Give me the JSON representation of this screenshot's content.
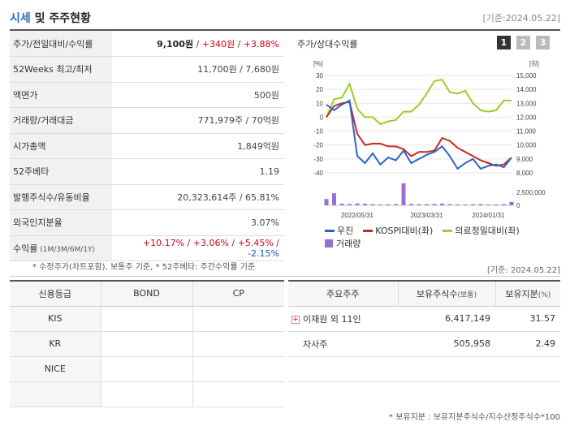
{
  "header": {
    "title_part1": "시세",
    "title_part2": " 및 주주현황",
    "date": "[기준:2024.05.22]"
  },
  "quote": {
    "rows": [
      {
        "label": "주가/전일대비/수익률",
        "price": "9,100원",
        "change": "+340원",
        "rate": "+3.88%"
      },
      {
        "label": "52Weeks 최고/최저",
        "value": "11,700원 / 7,680원"
      },
      {
        "label": "액면가",
        "value": "500원"
      },
      {
        "label": "거래량/거래대금",
        "value": "771,979주 / 70억원"
      },
      {
        "label": "시가총액",
        "value": "1,849억원"
      },
      {
        "label": "52주베타",
        "value": "1.19"
      },
      {
        "label": "발행주식수/유동비율",
        "value": "20,323,614주 / 65.81%"
      },
      {
        "label": "외국인지분율",
        "value": "3.07%"
      }
    ],
    "return_row": {
      "label": "수익률",
      "label_small": " (1M/3M/6M/1Y)",
      "r1": "+10.17%",
      "r2": "+3.06%",
      "r3": "+5.45%",
      "r4": "-2.15%"
    }
  },
  "chart": {
    "title": "주가/상대수익률",
    "tabs": [
      "1",
      "2",
      "3"
    ],
    "left_unit": "[%]",
    "right_unit": "[원]",
    "left_ticks": [
      "30",
      "20",
      "10",
      "0",
      "-10",
      "-20",
      "-30",
      "-40"
    ],
    "right_ticks": [
      "15,000",
      "14,000",
      "13,000",
      "12,000",
      "11,000",
      "10,000",
      "9,000",
      "8,000"
    ],
    "volume_ticks": [
      "2,500,000",
      "0"
    ],
    "x_ticks": [
      "2022/05/31",
      "2023/03/31",
      "2024/01/31"
    ],
    "legend": [
      "우진",
      "KOSPI대비(좌)",
      "의료정밀대비(좌)",
      "거래량"
    ],
    "colors": {
      "stock": "#2b64c8",
      "kospi": "#c8281e",
      "sector": "#9ccd2c",
      "volume": "#9a6fd2"
    }
  },
  "chart_data": {
    "type": "line",
    "x": [
      "2022/05",
      "2022/06",
      "2022/07",
      "2022/08",
      "2022/09",
      "2022/10",
      "2022/11",
      "2022/12",
      "2023/01",
      "2023/02",
      "2023/03",
      "2023/04",
      "2023/05",
      "2023/06",
      "2023/07",
      "2023/08",
      "2023/09",
      "2023/10",
      "2023/11",
      "2023/12",
      "2024/01",
      "2024/02",
      "2024/03",
      "2024/04",
      "2024/05"
    ],
    "series": [
      {
        "name": "우진",
        "axis": "right",
        "values": [
          12900,
          12500,
          12900,
          13200,
          9200,
          8700,
          9400,
          8600,
          9100,
          8900,
          9600,
          8700,
          9000,
          9300,
          9500,
          9900,
          9200,
          8300,
          8700,
          9000,
          8300,
          8500,
          8600,
          8400,
          9100
        ]
      },
      {
        "name": "KOSPI대비(좌)",
        "axis": "left",
        "values": [
          0,
          8,
          10,
          11,
          -12,
          -20,
          -19,
          -19,
          -21,
          -21,
          -23,
          -28,
          -25,
          -25,
          -24,
          -15,
          -17,
          -22,
          -25,
          -28,
          -31,
          -33,
          -35,
          -34,
          -29
        ]
      },
      {
        "name": "의료정밀대비(좌)",
        "axis": "left",
        "values": [
          0,
          13,
          14,
          24,
          6,
          0,
          0,
          -5,
          -3,
          -2,
          4,
          4,
          9,
          17,
          26,
          27,
          18,
          17,
          19,
          10,
          5,
          4,
          5,
          12,
          12
        ]
      },
      {
        "name": "거래량",
        "axis": "volume",
        "values": [
          1200000,
          2300000,
          300000,
          250000,
          350000,
          300000,
          200000,
          150000,
          180000,
          200000,
          4200000,
          250000,
          200000,
          200000,
          250000,
          300000,
          200000,
          150000,
          150000,
          200000,
          200000,
          150000,
          150000,
          200000,
          650000
        ]
      }
    ],
    "ylim_left": [
      -40,
      30
    ],
    "ylim_right": [
      8000,
      15000
    ],
    "legend_position": "bottom"
  },
  "notes": {
    "quote_note": "* 수정주가(차트포함), 보통주 기준, * 52주베타: 주간수익률 기준",
    "date2": "[기준: 2024.05.22]",
    "holders_note": "* 보유지분 : 보유지분주식수/지수산정주식수*100"
  },
  "credit": {
    "headers": [
      "신용등급",
      "BOND",
      "CP"
    ],
    "rows": [
      [
        "KIS",
        "",
        ""
      ],
      [
        "KR",
        "",
        ""
      ],
      [
        "NICE",
        "",
        ""
      ],
      [
        "",
        "",
        ""
      ]
    ]
  },
  "holders": {
    "headers": {
      "name": "주요주주",
      "shares": "보유주식수",
      "shares_unit": "(보통)",
      "ratio": "보유지분",
      "ratio_unit": "(%)"
    },
    "rows": [
      {
        "name": "이재원 외 11인",
        "shares": "6,417,149",
        "ratio": "31.57"
      },
      {
        "name": "자사주",
        "shares": "505,958",
        "ratio": "2.49"
      },
      {
        "name": "",
        "shares": "",
        "ratio": ""
      }
    ]
  }
}
